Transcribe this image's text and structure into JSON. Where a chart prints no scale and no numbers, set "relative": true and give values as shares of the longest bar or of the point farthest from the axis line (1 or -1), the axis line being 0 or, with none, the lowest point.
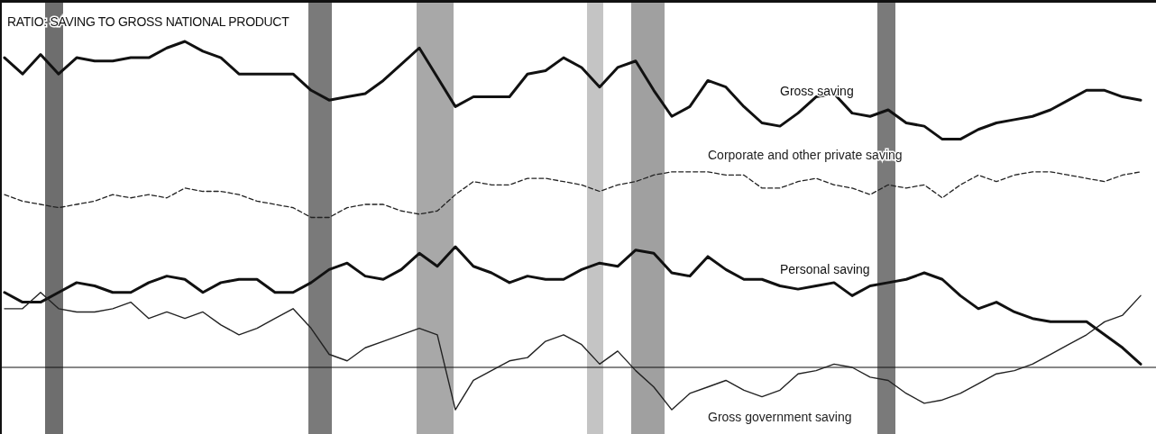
{
  "chart_data": {
    "type": "line",
    "title": "RATIO: SAVING TO GROSS NATIONAL PRODUCT",
    "relative": true,
    "legend": false,
    "categories": [
      null,
      null,
      null,
      null,
      null,
      null,
      null,
      null,
      null,
      null,
      null,
      null,
      null,
      null,
      null,
      null,
      null,
      null,
      null,
      null,
      null,
      null,
      null,
      null,
      null,
      null,
      null,
      null,
      null,
      null,
      null,
      null,
      null,
      null,
      null,
      null,
      null,
      null,
      null,
      null,
      null,
      null,
      null,
      null,
      null,
      null,
      null,
      null,
      null,
      null,
      null,
      null,
      null,
      null,
      null,
      null,
      null,
      null,
      null,
      null,
      null,
      null,
      null,
      null
    ],
    "series": [
      {
        "name": "Gross saving",
        "color": "#111111",
        "line_style": "solid",
        "values": [
          0.95,
          0.9,
          0.96,
          0.9,
          0.95,
          0.94,
          0.94,
          0.95,
          0.95,
          0.98,
          1.0,
          0.97,
          0.95,
          0.9,
          0.9,
          0.9,
          0.9,
          0.85,
          0.82,
          0.83,
          0.84,
          0.88,
          0.93,
          0.98,
          0.89,
          0.8,
          0.83,
          0.83,
          0.83,
          0.9,
          0.91,
          0.95,
          0.92,
          0.86,
          0.92,
          0.94,
          0.85,
          0.77,
          0.8,
          0.88,
          0.86,
          0.8,
          0.75,
          0.74,
          0.78,
          0.83,
          0.84,
          0.78,
          0.77,
          0.79,
          0.75,
          0.74,
          0.7,
          0.7,
          0.73,
          0.75,
          0.76,
          0.77,
          0.79,
          0.82,
          0.85,
          0.85,
          0.83,
          0.82
        ]
      },
      {
        "name": "Corporate and other private saving",
        "color": "#222222",
        "line_style": "dashed",
        "values": [
          0.53,
          0.51,
          0.5,
          0.49,
          0.5,
          0.51,
          0.53,
          0.52,
          0.53,
          0.52,
          0.55,
          0.54,
          0.54,
          0.53,
          0.51,
          0.5,
          0.49,
          0.46,
          0.46,
          0.49,
          0.5,
          0.5,
          0.48,
          0.47,
          0.48,
          0.53,
          0.57,
          0.56,
          0.56,
          0.58,
          0.58,
          0.57,
          0.56,
          0.54,
          0.56,
          0.57,
          0.59,
          0.6,
          0.6,
          0.6,
          0.59,
          0.59,
          0.55,
          0.55,
          0.57,
          0.58,
          0.56,
          0.55,
          0.53,
          0.56,
          0.55,
          0.56,
          0.52,
          0.56,
          0.59,
          0.57,
          0.59,
          0.6,
          0.6,
          0.59,
          0.58,
          0.57,
          0.59,
          0.6
        ]
      },
      {
        "name": "Personal saving",
        "color": "#111111",
        "line_style": "solid",
        "values": [
          0.23,
          0.2,
          0.2,
          0.23,
          0.26,
          0.25,
          0.23,
          0.23,
          0.26,
          0.28,
          0.27,
          0.23,
          0.26,
          0.27,
          0.27,
          0.23,
          0.23,
          0.26,
          0.3,
          0.32,
          0.28,
          0.27,
          0.3,
          0.35,
          0.31,
          0.37,
          0.31,
          0.29,
          0.26,
          0.28,
          0.27,
          0.27,
          0.3,
          0.32,
          0.31,
          0.36,
          0.35,
          0.29,
          0.28,
          0.34,
          0.3,
          0.27,
          0.27,
          0.25,
          0.24,
          0.25,
          0.26,
          0.22,
          0.25,
          0.26,
          0.27,
          0.29,
          0.27,
          0.22,
          0.18,
          0.2,
          0.17,
          0.15,
          0.14,
          0.14,
          0.14,
          0.1,
          0.06,
          0.01
        ]
      },
      {
        "name": "Gross government saving",
        "color": "#222222",
        "line_style": "solid",
        "values": [
          0.18,
          0.18,
          0.23,
          0.18,
          0.17,
          0.17,
          0.18,
          0.2,
          0.15,
          0.17,
          0.15,
          0.17,
          0.13,
          0.1,
          0.12,
          0.15,
          0.18,
          0.12,
          0.04,
          0.02,
          0.06,
          0.08,
          0.1,
          0.12,
          0.1,
          -0.13,
          -0.04,
          -0.01,
          0.02,
          0.03,
          0.08,
          0.1,
          0.07,
          0.01,
          0.05,
          -0.01,
          -0.06,
          -0.13,
          -0.08,
          -0.06,
          -0.04,
          -0.07,
          -0.09,
          -0.07,
          -0.02,
          -0.01,
          0.01,
          0.0,
          -0.03,
          -0.04,
          -0.08,
          -0.11,
          -0.1,
          -0.08,
          -0.05,
          -0.02,
          -0.01,
          0.01,
          0.04,
          0.07,
          0.1,
          0.14,
          0.16,
          0.22
        ]
      }
    ]
  }
}
